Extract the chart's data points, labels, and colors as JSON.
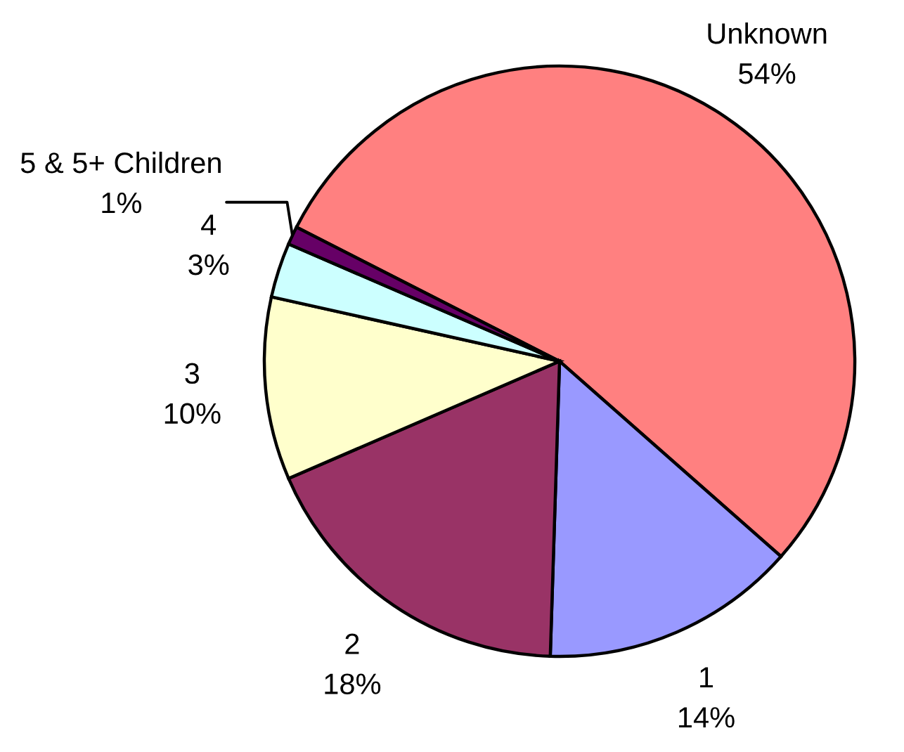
{
  "chart_data": {
    "type": "pie",
    "categories": [
      "Unknown",
      "1",
      "2",
      "3",
      "4",
      "5 & 5+ Children"
    ],
    "values": [
      54,
      14,
      18,
      10,
      3,
      1
    ],
    "value_labels": [
      "54%",
      "14%",
      "18%",
      "10%",
      "3%",
      "1%"
    ],
    "colors": [
      "#ff8080",
      "#9999ff",
      "#993366",
      "#ffffcc",
      "#ccffff",
      "#660066"
    ]
  }
}
